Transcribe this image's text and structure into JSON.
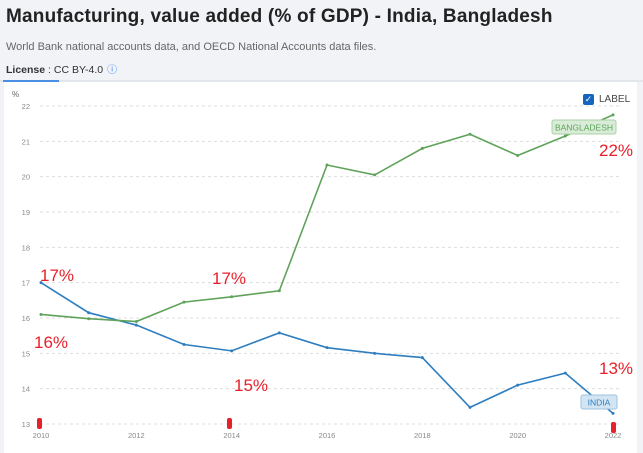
{
  "header": {
    "title": "Manufacturing, value added (% of GDP) - India, Bangladesh",
    "source": "World Bank national accounts data, and OECD National Accounts data files.",
    "license_label": "License",
    "license_value": ": CC BY-4.0",
    "info_icon": "info-circle-icon"
  },
  "label_toggle": {
    "label": "LABEL",
    "checked": true
  },
  "annotations": [
    "17%",
    "16%",
    "17%",
    "15%",
    "22%",
    "13%"
  ],
  "chart_data": {
    "type": "line",
    "ylabel": "%",
    "ylim": [
      13,
      22
    ],
    "yticks": [
      "13",
      "14",
      "15",
      "16",
      "17",
      "18",
      "19",
      "20",
      "21",
      "22"
    ],
    "xticks": [
      "2010",
      "2012",
      "2014",
      "2016",
      "2018",
      "2020",
      "2022"
    ],
    "x": [
      2010,
      2011,
      2012,
      2013,
      2014,
      2015,
      2016,
      2017,
      2018,
      2019,
      2020,
      2021,
      2022
    ],
    "grid": true,
    "series": [
      {
        "name": "INDIA",
        "color": "#2e7ebf",
        "values": [
          17.0,
          16.15,
          15.8,
          15.25,
          15.07,
          15.58,
          15.16,
          15.0,
          14.88,
          13.47,
          14.1,
          14.44,
          13.3
        ]
      },
      {
        "name": "BANGLADESH",
        "color": "#5fa35a",
        "values": [
          16.1,
          15.98,
          15.9,
          16.45,
          16.6,
          16.77,
          20.33,
          20.05,
          20.8,
          21.2,
          20.6,
          21.15,
          21.75
        ]
      }
    ]
  }
}
